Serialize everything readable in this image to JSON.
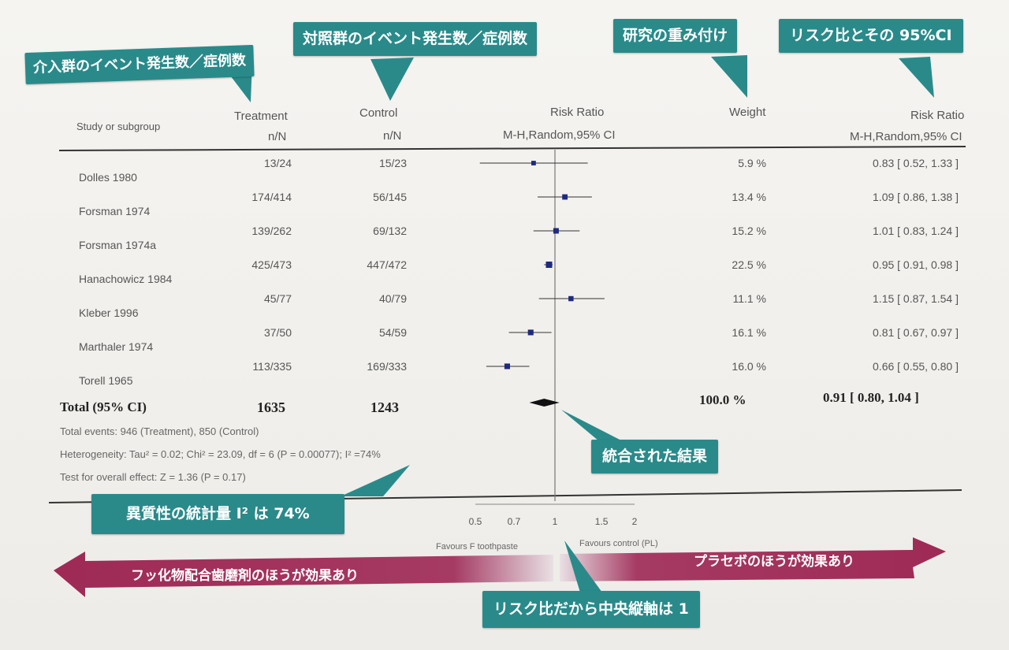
{
  "callouts": {
    "treatment_events": "介入群のイベント発生数／症例数",
    "control_events": "対照群のイベント発生数／症例数",
    "weighting": "研究の重み付け",
    "risk_ratio_ci": "リスク比とその 95%CI",
    "pooled_result": "統合された結果",
    "heterogeneity_i2": "異質性の統計量 I² は 74%",
    "center_axis": "リスク比だから中央縦軸は 1"
  },
  "arrows": {
    "left": "フッ化物配合歯磨剤のほうが効果あり",
    "right": "プラセボのほうが効果あり"
  },
  "headers": {
    "study": "Study or subgroup",
    "treatment": "Treatment",
    "treatment_sub": "n/N",
    "control": "Control",
    "control_sub": "n/N",
    "risk_ratio": "Risk Ratio",
    "risk_ratio_sub": "M-H,Random,95% CI",
    "weight": "Weight",
    "risk_ratio_right": "Risk Ratio",
    "risk_ratio_right_sub": "M-H,Random,95% CI"
  },
  "total": {
    "label": "Total (95% CI)",
    "treatment": "1635",
    "control": "1243",
    "weight": "100.0 %",
    "rr_text": "0.91 [ 0.80, 1.04 ]"
  },
  "footnotes": {
    "events": "Total events: 946 (Treatment), 850 (Control)",
    "heterogeneity": "Heterogeneity: Tau² = 0.02; Chi² = 23.09, df = 6 (P = 0.00077); I² =74%",
    "overall": "Test for overall effect: Z = 1.36 (P = 0.17)"
  },
  "axis": {
    "favours_left": "Favours F toothpaste",
    "favours_right": "Favours control (PL)"
  },
  "colors": {
    "callout": "#2a8a8a",
    "arrow": "#9e2a55",
    "marker": "#1e2a80"
  },
  "chart_data": {
    "type": "forest",
    "scale": "log",
    "xlim": [
      0.5,
      2
    ],
    "reference_line": 1,
    "ticks": [
      0.5,
      0.7,
      1,
      1.5,
      2
    ],
    "tick_labels": [
      "0.5",
      "0.7",
      "1",
      "1.5",
      "2"
    ],
    "studies": [
      {
        "name": "Dolles 1980",
        "treatment": "13/24",
        "control": "15/23",
        "weight": "5.9 %",
        "rr": 0.83,
        "lo": 0.52,
        "hi": 1.33,
        "rr_text": "0.83 [ 0.52, 1.33 ]"
      },
      {
        "name": "Forsman 1974",
        "treatment": "174/414",
        "control": "56/145",
        "weight": "13.4 %",
        "rr": 1.09,
        "lo": 0.86,
        "hi": 1.38,
        "rr_text": "1.09 [ 0.86, 1.38 ]"
      },
      {
        "name": "Forsman 1974a",
        "treatment": "139/262",
        "control": "69/132",
        "weight": "15.2 %",
        "rr": 1.01,
        "lo": 0.83,
        "hi": 1.24,
        "rr_text": "1.01 [ 0.83, 1.24 ]"
      },
      {
        "name": "Hanachowicz 1984",
        "treatment": "425/473",
        "control": "447/472",
        "weight": "22.5 %",
        "rr": 0.95,
        "lo": 0.91,
        "hi": 0.98,
        "rr_text": "0.95 [ 0.91, 0.98 ]"
      },
      {
        "name": "Kleber 1996",
        "treatment": "45/77",
        "control": "40/79",
        "weight": "11.1 %",
        "rr": 1.15,
        "lo": 0.87,
        "hi": 1.54,
        "rr_text": "1.15 [ 0.87, 1.54 ]"
      },
      {
        "name": "Marthaler 1974",
        "treatment": "37/50",
        "control": "54/59",
        "weight": "16.1 %",
        "rr": 0.81,
        "lo": 0.67,
        "hi": 0.97,
        "rr_text": "0.81 [ 0.67, 0.97 ]"
      },
      {
        "name": "Torell 1965",
        "treatment": "113/335",
        "control": "169/333",
        "weight": "16.0 %",
        "rr": 0.66,
        "lo": 0.55,
        "hi": 0.8,
        "rr_text": "0.66 [ 0.55, 0.80 ]"
      }
    ],
    "pooled": {
      "rr": 0.91,
      "lo": 0.8,
      "hi": 1.04
    }
  }
}
